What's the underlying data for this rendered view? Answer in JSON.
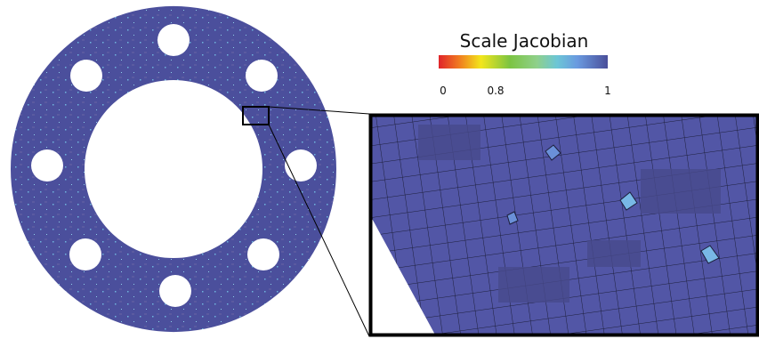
{
  "colorbar": {
    "title": "Scale Jacobian",
    "ticks": [
      "0",
      "0.8",
      "1"
    ]
  }
}
